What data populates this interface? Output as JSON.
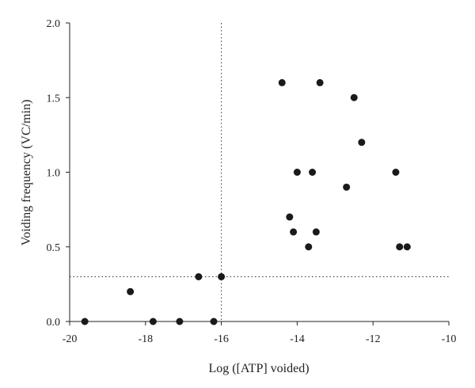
{
  "chart_data": {
    "type": "scatter",
    "title": "",
    "xlabel": "Log ([ATP] voided)",
    "ylabel": "Voiding frequency (VC/min)",
    "xlim": [
      -20,
      -10
    ],
    "ylim": [
      0,
      2.0
    ],
    "x_ticks": [
      -20,
      -18,
      -16,
      -14,
      -12,
      -10
    ],
    "x_tick_labels": [
      "-20",
      "-18",
      "-16",
      "-14",
      "-12",
      "-10"
    ],
    "y_ticks": [
      0,
      0.5,
      1.0,
      1.5,
      2.0
    ],
    "y_tick_labels": [
      "0.0",
      "0.5",
      "1.0",
      "1.5",
      "2.0"
    ],
    "grid": false,
    "threshold_lines": {
      "x": -16,
      "y": 0.3,
      "style": "dotted"
    },
    "marker_color": "#1a1a1a",
    "points": [
      {
        "x": -19.6,
        "y": 0.0
      },
      {
        "x": -18.4,
        "y": 0.2
      },
      {
        "x": -17.8,
        "y": 0.0
      },
      {
        "x": -17.1,
        "y": 0.0
      },
      {
        "x": -16.6,
        "y": 0.3
      },
      {
        "x": -16.2,
        "y": 0.0
      },
      {
        "x": -16.0,
        "y": 0.3
      },
      {
        "x": -14.4,
        "y": 1.6
      },
      {
        "x": -14.2,
        "y": 0.7
      },
      {
        "x": -14.1,
        "y": 0.6
      },
      {
        "x": -14.0,
        "y": 1.0
      },
      {
        "x": -13.7,
        "y": 0.5
      },
      {
        "x": -13.6,
        "y": 1.0
      },
      {
        "x": -13.5,
        "y": 0.6
      },
      {
        "x": -13.4,
        "y": 1.6
      },
      {
        "x": -12.7,
        "y": 0.9
      },
      {
        "x": -12.5,
        "y": 1.5
      },
      {
        "x": -12.3,
        "y": 1.2
      },
      {
        "x": -11.4,
        "y": 1.0
      },
      {
        "x": -11.3,
        "y": 0.5
      },
      {
        "x": -11.1,
        "y": 0.5
      }
    ]
  }
}
